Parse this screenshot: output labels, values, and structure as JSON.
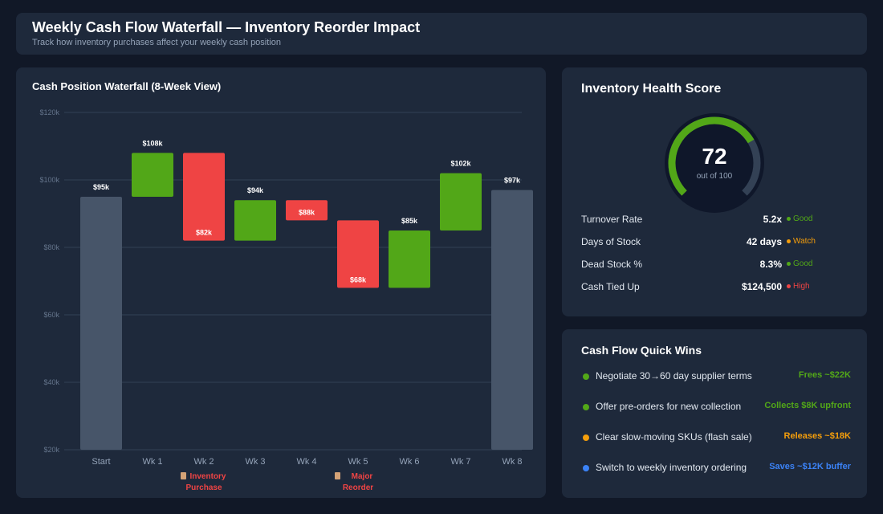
{
  "header": {
    "title": "Weekly Cash Flow Waterfall — Inventory Reorder Impact",
    "subtitle": "Track how inventory purchases affect your weekly cash position"
  },
  "colors": {
    "increase": "#52a718",
    "decrease": "#ef4444",
    "total": "#475569",
    "warning": "#f59e0b",
    "info": "#3b82f6"
  },
  "chart_data": {
    "type": "waterfall",
    "title": "Cash Position Waterfall (8-Week View)",
    "categories": [
      "Start",
      "Wk 1",
      "Wk 2",
      "Wk 3",
      "Wk 4",
      "Wk 5",
      "Wk 6",
      "Wk 7",
      "Wk 8"
    ],
    "bars": [
      {
        "kind": "total",
        "from": 20,
        "to": 95,
        "label": "$95k"
      },
      {
        "kind": "increase",
        "from": 95,
        "to": 108,
        "label": "$108k"
      },
      {
        "kind": "decrease",
        "from": 108,
        "to": 82,
        "label": "$82k"
      },
      {
        "kind": "increase",
        "from": 82,
        "to": 94,
        "label": "$94k"
      },
      {
        "kind": "decrease",
        "from": 94,
        "to": 88,
        "label": "$88k"
      },
      {
        "kind": "decrease",
        "from": 88,
        "to": 68,
        "label": "$68k"
      },
      {
        "kind": "increase",
        "from": 68,
        "to": 85,
        "label": "$85k"
      },
      {
        "kind": "increase",
        "from": 85,
        "to": 102,
        "label": "$102k"
      },
      {
        "kind": "total",
        "from": 20,
        "to": 97,
        "label": "$97k"
      }
    ],
    "yunit": "$k",
    "ylim": [
      20,
      120
    ],
    "yticks": [
      {
        "v": 20,
        "label": "$20k"
      },
      {
        "v": 40,
        "label": "$40k"
      },
      {
        "v": 60,
        "label": "$60k"
      },
      {
        "v": 80,
        "label": "$80k"
      },
      {
        "v": 100,
        "label": "$100k"
      },
      {
        "v": 120,
        "label": "$120k"
      }
    ],
    "grid": true,
    "annotations": [
      {
        "category": "Wk 2",
        "icon": "package-icon",
        "lines": [
          "Inventory",
          "Purchase"
        ]
      },
      {
        "category": "Wk 5",
        "icon": "package-icon",
        "lines": [
          "Major",
          "Reorder"
        ]
      }
    ]
  },
  "health": {
    "title": "Inventory Health Score",
    "score": "72",
    "score_value": 72,
    "out_of": "out of 100",
    "metrics": [
      {
        "label": "Turnover Rate",
        "value": "5.2x",
        "status": "Good",
        "color": "#52a718"
      },
      {
        "label": "Days of Stock",
        "value": "42 days",
        "status": "Watch",
        "color": "#f59e0b"
      },
      {
        "label": "Dead Stock %",
        "value": "8.3%",
        "status": "Good",
        "color": "#52a718"
      },
      {
        "label": "Cash Tied Up",
        "value": "$124,500",
        "status": "High",
        "color": "#ef4444"
      }
    ]
  },
  "wins": {
    "title": "Cash Flow Quick Wins",
    "items": [
      {
        "text": "Negotiate 30→60 day supplier terms",
        "result": "Frees ~$22K",
        "color": "#52a718"
      },
      {
        "text": "Offer pre-orders for new collection",
        "result": "Collects $8K upfront",
        "color": "#52a718"
      },
      {
        "text": "Clear slow-moving SKUs (flash sale)",
        "result": "Releases ~$18K",
        "color": "#f59e0b"
      },
      {
        "text": "Switch to weekly inventory ordering",
        "result": "Saves ~$12K buffer",
        "color": "#3b82f6"
      }
    ]
  }
}
